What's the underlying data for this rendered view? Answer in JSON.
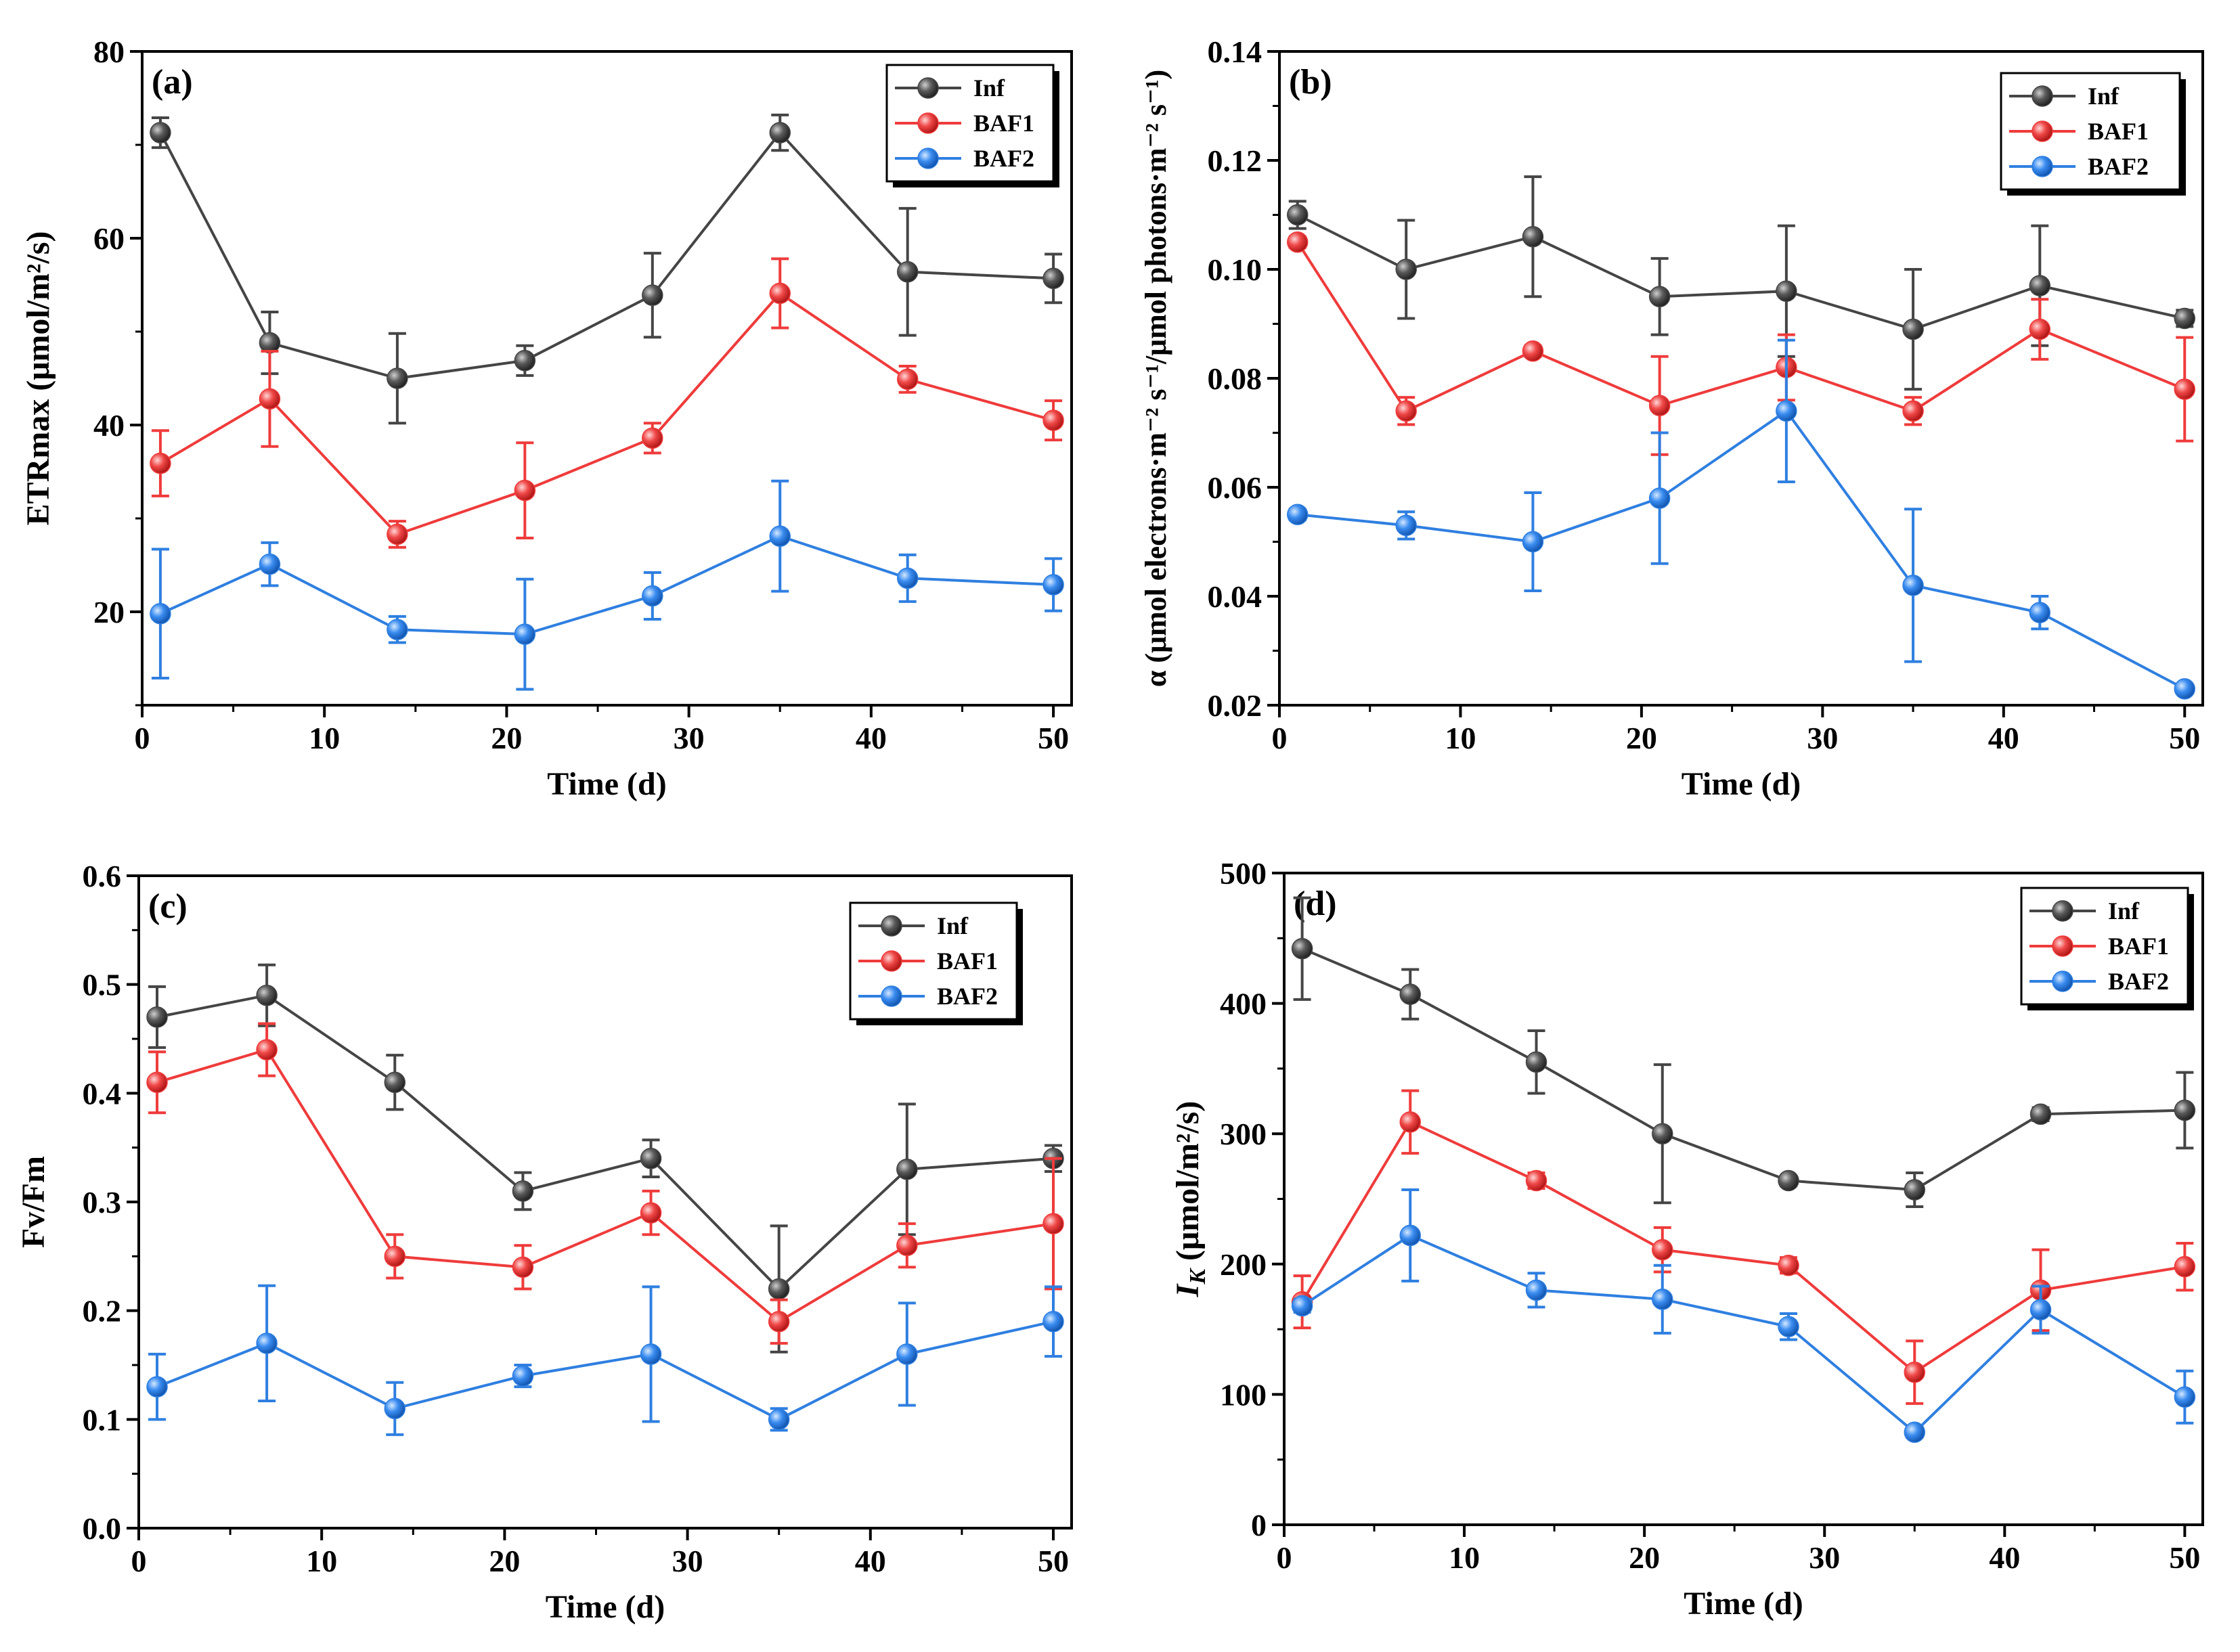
{
  "figure": {
    "series_names": [
      "Inf",
      "BAF1",
      "BAF2"
    ],
    "series_colors": {
      "Inf": "#454545",
      "BAF1": "#ef3b3b",
      "BAF2": "#2f7fe0"
    },
    "x_days": [
      1,
      7,
      14,
      21,
      28,
      35,
      42,
      50
    ]
  },
  "chart_data": [
    {
      "type": "line",
      "panel": "(a)",
      "xlabel": "Time (d)",
      "ylabel": "ETRmax (μmol/m²/s)",
      "xlim": [
        0,
        51
      ],
      "ylim": [
        10,
        80
      ],
      "xticks": [
        0,
        10,
        20,
        30,
        40,
        50
      ],
      "yticks": [
        20,
        40,
        60,
        80
      ],
      "ytick_labels": [
        "20",
        "40",
        "60",
        "80"
      ],
      "legend": [
        "Inf",
        "BAF1",
        "BAF2"
      ],
      "legend_position": "top-right",
      "x": [
        1,
        7,
        14,
        21,
        28,
        35,
        42,
        50
      ],
      "series": [
        {
          "name": "Inf",
          "values": [
            71.3,
            48.8,
            45.0,
            46.9,
            53.9,
            71.3,
            56.4,
            55.7
          ],
          "errors": [
            1.6,
            3.3,
            4.8,
            1.6,
            4.5,
            1.9,
            6.8,
            2.6
          ]
        },
        {
          "name": "BAF1",
          "values": [
            35.9,
            42.8,
            28.3,
            33.0,
            38.6,
            54.1,
            44.9,
            40.5
          ],
          "errors": [
            3.5,
            5.1,
            1.4,
            5.1,
            1.6,
            3.7,
            1.4,
            2.1
          ]
        },
        {
          "name": "BAF2",
          "values": [
            19.8,
            25.1,
            18.1,
            17.6,
            21.7,
            28.1,
            23.6,
            22.9
          ],
          "errors": [
            6.9,
            2.3,
            1.4,
            5.9,
            2.5,
            5.9,
            2.5,
            2.8
          ]
        }
      ]
    },
    {
      "type": "line",
      "panel": "(b)",
      "xlabel": "Time (d)",
      "ylabel": "α (μmol electrons·m⁻² s⁻¹/μmol photons·m⁻² s⁻¹)",
      "xlim": [
        0,
        51
      ],
      "ylim": [
        0.02,
        0.14
      ],
      "xticks": [
        0,
        10,
        20,
        30,
        40,
        50
      ],
      "yticks": [
        0.02,
        0.04,
        0.06,
        0.08,
        0.1,
        0.12,
        0.14
      ],
      "ytick_labels": [
        "0.02",
        "0.04",
        "0.06",
        "0.08",
        "0.10",
        "0.12",
        "0.14"
      ],
      "legend": [
        "Inf",
        "BAF1",
        "BAF2"
      ],
      "legend_position": "top-right",
      "x": [
        1,
        7,
        14,
        21,
        28,
        35,
        42,
        50
      ],
      "series": [
        {
          "name": "Inf",
          "values": [
            0.11,
            0.1,
            0.106,
            0.095,
            0.096,
            0.089,
            0.097,
            0.091
          ],
          "errors": [
            0.0025,
            0.009,
            0.011,
            0.007,
            0.012,
            0.011,
            0.011,
            0.0015
          ]
        },
        {
          "name": "BAF1",
          "values": [
            0.105,
            0.074,
            0.085,
            0.075,
            0.082,
            0.074,
            0.089,
            0.078
          ],
          "errors": [
            0.001,
            0.0025,
            0.001,
            0.009,
            0.006,
            0.0025,
            0.0055,
            0.0095
          ]
        },
        {
          "name": "BAF2",
          "values": [
            0.055,
            0.053,
            0.05,
            0.058,
            0.074,
            0.042,
            0.037,
            0.023
          ],
          "errors": [
            0.001,
            0.0025,
            0.009,
            0.012,
            0.013,
            0.014,
            0.003,
            0.0005
          ]
        }
      ]
    },
    {
      "type": "line",
      "panel": "(c)",
      "xlabel": "Time (d)",
      "ylabel": "Fv/Fm",
      "xlim": [
        0,
        51
      ],
      "ylim": [
        0,
        0.6
      ],
      "xticks": [
        0,
        10,
        20,
        30,
        40,
        50
      ],
      "yticks": [
        0,
        0.1,
        0.2,
        0.3,
        0.4,
        0.5,
        0.6
      ],
      "ytick_labels": [
        "0.0",
        "0.1",
        "0.2",
        "0.3",
        "0.4",
        "0.5",
        "0.6"
      ],
      "legend": [
        "Inf",
        "BAF1",
        "BAF2"
      ],
      "legend_position": "top-right",
      "x": [
        1,
        7,
        14,
        21,
        28,
        35,
        42,
        50
      ],
      "series": [
        {
          "name": "Inf",
          "values": [
            0.47,
            0.49,
            0.41,
            0.31,
            0.34,
            0.22,
            0.33,
            0.34
          ],
          "errors": [
            0.028,
            0.028,
            0.025,
            0.017,
            0.017,
            0.058,
            0.06,
            0.012
          ]
        },
        {
          "name": "BAF1",
          "values": [
            0.41,
            0.44,
            0.25,
            0.24,
            0.29,
            0.19,
            0.26,
            0.28
          ],
          "errors": [
            0.028,
            0.024,
            0.02,
            0.02,
            0.02,
            0.02,
            0.02,
            0.06
          ]
        },
        {
          "name": "BAF2",
          "values": [
            0.13,
            0.17,
            0.11,
            0.14,
            0.16,
            0.1,
            0.16,
            0.19
          ],
          "errors": [
            0.03,
            0.053,
            0.024,
            0.01,
            0.062,
            0.01,
            0.047,
            0.032
          ]
        }
      ]
    },
    {
      "type": "line",
      "panel": "(d)",
      "xlabel": "Time (d)",
      "ylabel_main": "I",
      "ylabel_sub": "K",
      "ylabel_rest": " (μmol/m²/s)",
      "xlim": [
        0,
        51
      ],
      "ylim": [
        0,
        500
      ],
      "xticks": [
        0,
        10,
        20,
        30,
        40,
        50
      ],
      "yticks": [
        0,
        100,
        200,
        300,
        400,
        500
      ],
      "ytick_labels": [
        "0",
        "100",
        "200",
        "300",
        "400",
        "500"
      ],
      "legend": [
        "Inf",
        "BAF1",
        "BAF2"
      ],
      "legend_position": "top-right",
      "x": [
        1,
        7,
        14,
        21,
        28,
        35,
        42,
        50
      ],
      "series": [
        {
          "name": "Inf",
          "values": [
            442,
            407,
            355,
            300,
            264,
            257,
            315,
            318
          ],
          "errors": [
            39,
            19,
            24,
            53,
            4,
            13,
            5,
            29
          ]
        },
        {
          "name": "BAF1",
          "values": [
            171,
            309,
            264,
            211,
            199,
            117,
            180,
            198
          ],
          "errors": [
            20,
            24,
            6,
            17,
            6,
            24,
            31,
            18
          ]
        },
        {
          "name": "BAF2",
          "values": [
            168,
            222,
            180,
            173,
            152,
            71,
            165,
            98
          ],
          "errors": [
            5,
            35,
            13,
            26,
            10,
            4,
            18,
            20
          ]
        }
      ]
    }
  ]
}
